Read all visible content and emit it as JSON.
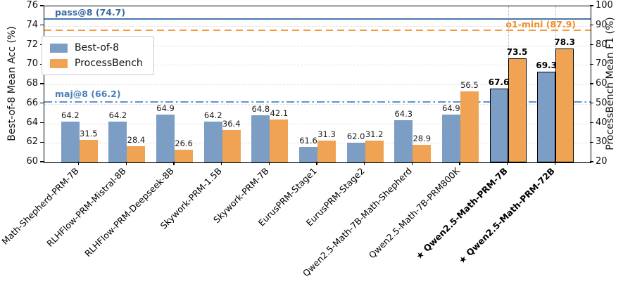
{
  "chart_data": {
    "type": "bar",
    "title": "",
    "categories": [
      "Math-Shepherd-PRM-7B",
      "RLHFlow-PRM-Mistral-8B",
      "RLHFlow-PRM-Deepseek-8B",
      "Skywork-PRM-1.5B",
      "Skywork-PRM-7B",
      "EurusPRM-Stage1",
      "EurusPRM-Stage2",
      "Qwen2.5-Math-7B-Math-Shepherd",
      "Qwen2.5-Math-7B-PRM800K",
      "Qwen2.5-Math-PRM-7B",
      "Qwen2.5-Math-PRM-72B"
    ],
    "highlighted_indices": [
      9,
      10
    ],
    "highlight_marker": "★",
    "series": [
      {
        "name": "Best-of-8",
        "axis": "left",
        "color": "#7c9dc4",
        "values": [
          64.2,
          64.2,
          64.9,
          64.2,
          64.8,
          61.6,
          62.0,
          64.3,
          64.9,
          67.6,
          69.3
        ]
      },
      {
        "name": "ProcessBench",
        "axis": "right",
        "color": "#f0a353",
        "values": [
          31.5,
          28.4,
          26.6,
          36.4,
          42.1,
          31.3,
          31.2,
          28.9,
          56.5,
          73.5,
          78.3
        ]
      }
    ],
    "left_axis": {
      "label": "Best-of-8 Mean Acc (%)",
      "min": 60,
      "max": 76,
      "ticks": [
        60,
        62,
        64,
        66,
        68,
        70,
        72,
        74,
        76
      ]
    },
    "right_axis": {
      "label": "ProcessBench Mean F1 (%)",
      "min": 20,
      "max": 100,
      "ticks": [
        20,
        30,
        40,
        50,
        60,
        70,
        80,
        90,
        100
      ]
    },
    "reference_lines": [
      {
        "label": "pass@8 (74.7)",
        "value": 74.7,
        "axis": "left",
        "style": "solid",
        "color": "#4878a8",
        "label_color": "#3b6ba5",
        "label_align": "left"
      },
      {
        "label": "o1-mini (87.9)",
        "value": 87.9,
        "axis": "right",
        "style": "dashed",
        "color": "#f79c42",
        "label_color": "#ef8e28",
        "label_align": "right"
      },
      {
        "label": "maj@8 (66.2)",
        "value": 66.2,
        "axis": "left",
        "style": "dashdot",
        "color": "#5f94cc",
        "label_color": "#4a80b8",
        "label_align": "left"
      }
    ],
    "legend": {
      "position": "upper-left",
      "entries": [
        {
          "label": "Best-of-8"
        },
        {
          "label": "ProcessBench"
        }
      ]
    },
    "grid": "horizontal-dashed",
    "value_label_decimals": 1
  }
}
